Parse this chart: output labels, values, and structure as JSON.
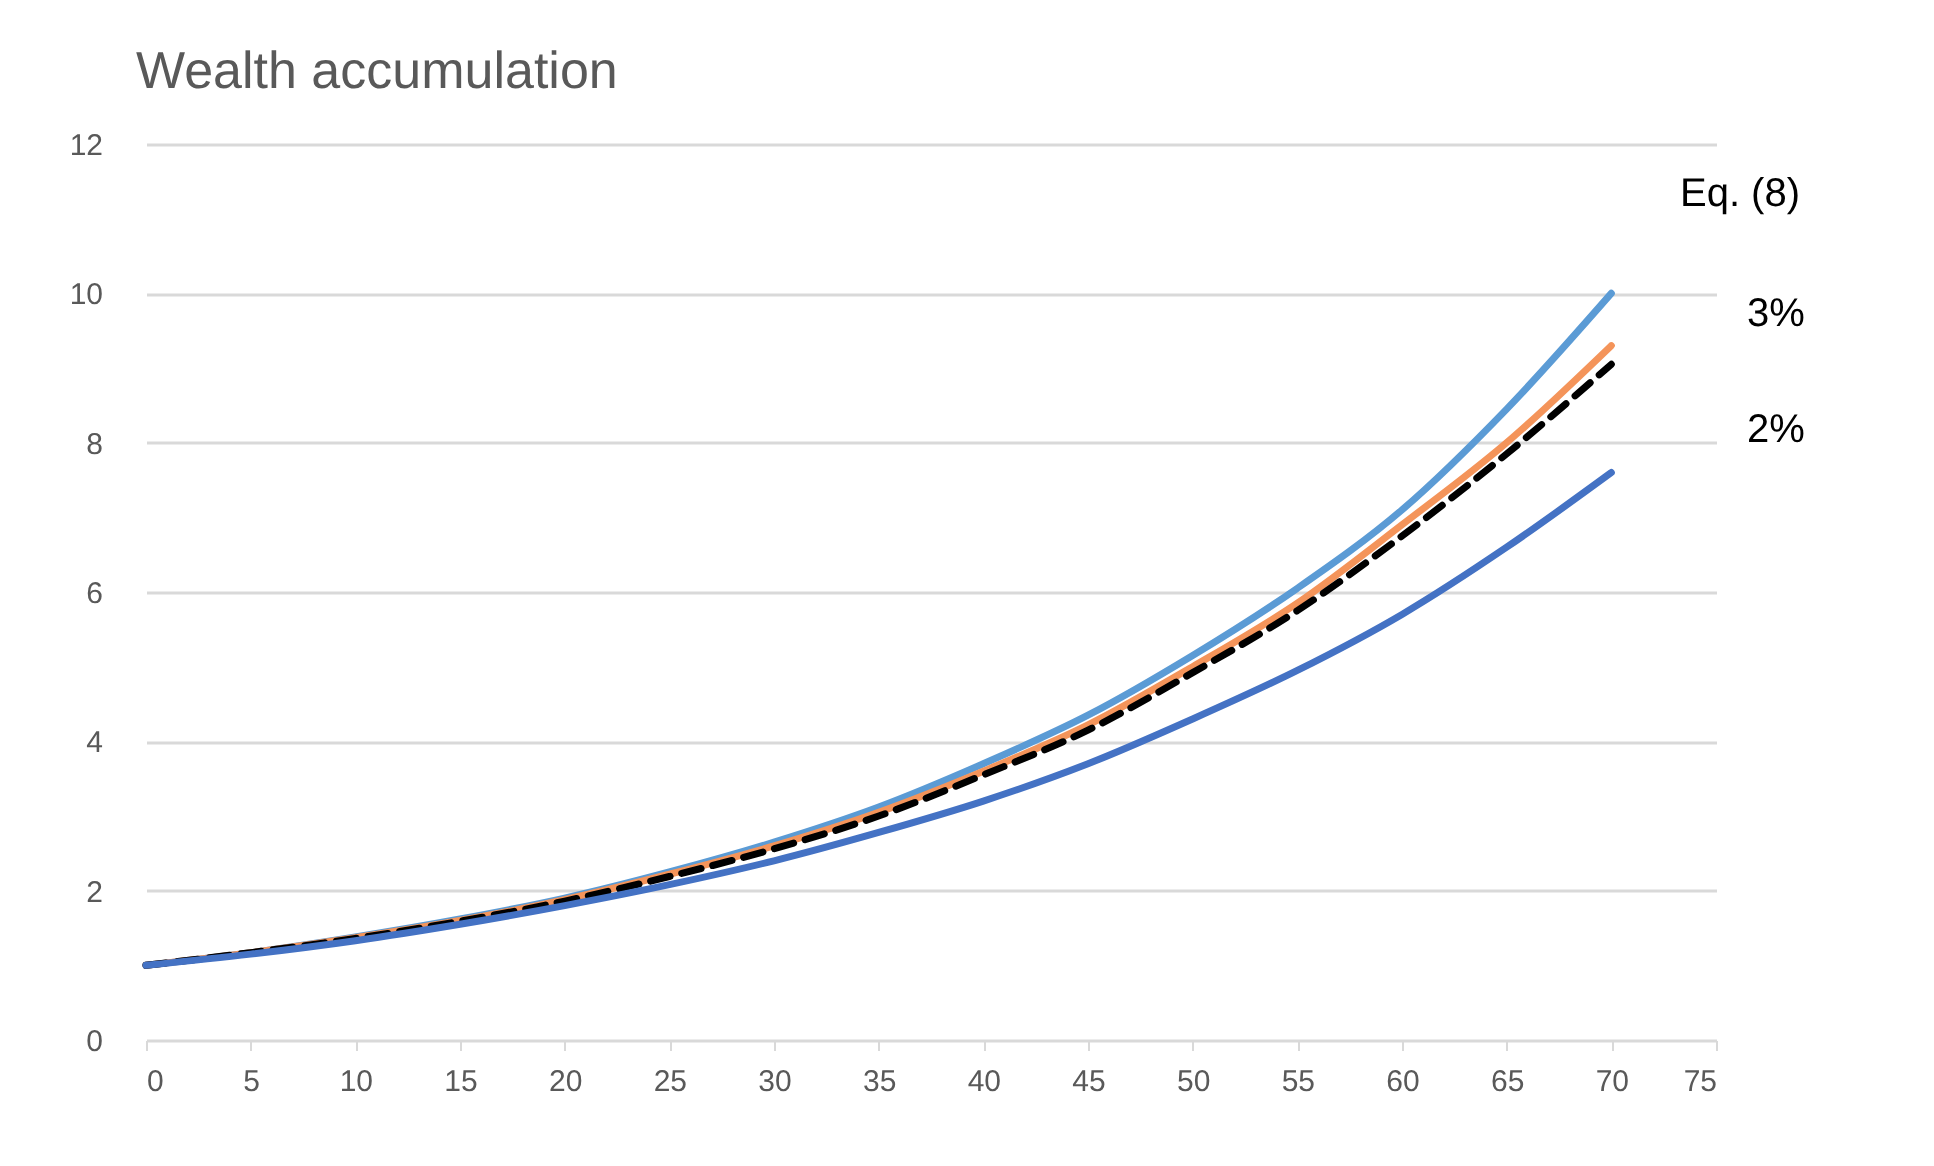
{
  "chart_data": {
    "type": "line",
    "title": "Wealth accumulation",
    "x": [
      0,
      5,
      10,
      15,
      20,
      25,
      30,
      35,
      40,
      45,
      50,
      55,
      60,
      65,
      70
    ],
    "series": [
      {
        "color": "#5b9bd5",
        "line_style": "solid",
        "values": [
          1,
          1.17,
          1.38,
          1.62,
          1.9,
          2.25,
          2.65,
          3.12,
          3.7,
          4.35,
          5.15,
          6.05,
          7.1,
          8.45,
          10.0
        ]
      },
      {
        "color": "#f4945a",
        "line_style": "solid",
        "values": [
          1,
          1.17,
          1.37,
          1.6,
          1.88,
          2.22,
          2.6,
          3.05,
          3.6,
          4.22,
          5.0,
          5.85,
          6.9,
          8.0,
          9.3
        ]
      },
      {
        "color": "#000000",
        "line_style": "dashed",
        "values": [
          1,
          1.17,
          1.36,
          1.59,
          1.86,
          2.19,
          2.56,
          3.0,
          3.55,
          4.15,
          4.92,
          5.75,
          6.75,
          7.85,
          9.05
        ]
      },
      {
        "color": "#4472c4",
        "line_style": "solid",
        "values": [
          1,
          1.15,
          1.33,
          1.55,
          1.8,
          2.08,
          2.4,
          2.78,
          3.2,
          3.7,
          4.3,
          4.95,
          5.7,
          6.6,
          7.6
        ]
      }
    ],
    "xlim": [
      0,
      75
    ],
    "xticks": [
      0,
      5,
      10,
      15,
      20,
      25,
      30,
      35,
      40,
      45,
      50,
      55,
      60,
      65,
      70,
      75
    ],
    "ylim": [
      0,
      12
    ],
    "yticks": [
      0,
      2,
      4,
      6,
      8,
      10,
      12
    ],
    "grid": "y",
    "annotations": [
      "Eq. (8)",
      "3%",
      "2%"
    ]
  }
}
